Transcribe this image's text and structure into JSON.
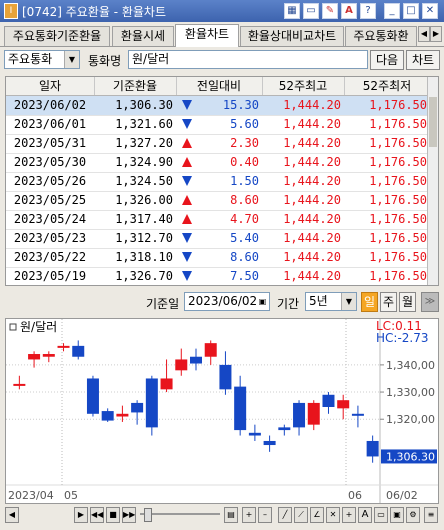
{
  "window": {
    "title": "[0742] 주요환율 - 환율차트",
    "app_icon": "I"
  },
  "tabs": [
    {
      "label": "주요통화기준환율",
      "active": false
    },
    {
      "label": "환율시세",
      "active": false
    },
    {
      "label": "환율차트",
      "active": true
    },
    {
      "label": "환율상대비교차트",
      "active": false
    },
    {
      "label": "주요통화환",
      "active": false
    }
  ],
  "controls": {
    "category_value": "주요통화",
    "currency_label": "통화명",
    "currency_value": "원/달러",
    "next_label": "다음",
    "chart_label": "차트"
  },
  "grid": {
    "headers": [
      "일자",
      "기준환율",
      "전일대비",
      "52주최고",
      "52주최저"
    ],
    "rows": [
      {
        "date": "2023/06/02",
        "rate": "1,306.30",
        "dir": "dn",
        "change": "15.30",
        "high": "1,444.20",
        "low": "1,176.50"
      },
      {
        "date": "2023/06/01",
        "rate": "1,321.60",
        "dir": "dn",
        "change": "5.60",
        "high": "1,444.20",
        "low": "1,176.50"
      },
      {
        "date": "2023/05/31",
        "rate": "1,327.20",
        "dir": "up",
        "change": "2.30",
        "high": "1,444.20",
        "low": "1,176.50"
      },
      {
        "date": "2023/05/30",
        "rate": "1,324.90",
        "dir": "up",
        "change": "0.40",
        "high": "1,444.20",
        "low": "1,176.50"
      },
      {
        "date": "2023/05/26",
        "rate": "1,324.50",
        "dir": "dn",
        "change": "1.50",
        "high": "1,444.20",
        "low": "1,176.50"
      },
      {
        "date": "2023/05/25",
        "rate": "1,326.00",
        "dir": "up",
        "change": "8.60",
        "high": "1,444.20",
        "low": "1,176.50"
      },
      {
        "date": "2023/05/24",
        "rate": "1,317.40",
        "dir": "up",
        "change": "4.70",
        "high": "1,444.20",
        "low": "1,176.50"
      },
      {
        "date": "2023/05/23",
        "rate": "1,312.70",
        "dir": "dn",
        "change": "5.40",
        "high": "1,444.20",
        "low": "1,176.50"
      },
      {
        "date": "2023/05/22",
        "rate": "1,318.10",
        "dir": "dn",
        "change": "8.60",
        "high": "1,444.20",
        "low": "1,176.50"
      },
      {
        "date": "2023/05/19",
        "rate": "1,326.70",
        "dir": "dn",
        "change": "7.50",
        "high": "1,444.20",
        "low": "1,176.50"
      }
    ]
  },
  "datebar": {
    "base_date_label": "기준일",
    "base_date_value": "2023/06/02",
    "period_label": "기간",
    "period_value": "5년",
    "day_label": "일",
    "week_label": "주",
    "month_label": "월"
  },
  "chart": {
    "legend": "원/달러",
    "lc": "LC:0.11",
    "hc": "HC:-2.73",
    "price_top_partial": "1,340,00",
    "current_price": "1,306.30"
  },
  "chart_data": {
    "type": "candlestick",
    "title": "원/달러",
    "y_ticks": [
      "1,340,00",
      "1,330,00",
      "1,320,00"
    ],
    "y_tick_values": [
      1340,
      1330,
      1320
    ],
    "ylim": [
      1298,
      1351
    ],
    "x_labels": [
      "2023/04",
      "05",
      "06",
      "06/02"
    ],
    "candles": [
      {
        "o": 1333.0,
        "h": 1336.0,
        "l": 1331.0,
        "c": 1333.0
      },
      {
        "o": 1342.0,
        "h": 1345.0,
        "l": 1339.0,
        "c": 1344.0
      },
      {
        "o": 1343.0,
        "h": 1345.0,
        "l": 1341.0,
        "c": 1344.0
      },
      {
        "o": 1347.0,
        "h": 1348.0,
        "l": 1345.0,
        "c": 1347.0
      },
      {
        "o": 1347.0,
        "h": 1349.0,
        "l": 1342.0,
        "c": 1343.0
      },
      {
        "o": 1335.0,
        "h": 1336.0,
        "l": 1321.0,
        "c": 1322.0
      },
      {
        "o": 1323.0,
        "h": 1324.0,
        "l": 1319.0,
        "c": 1319.5
      },
      {
        "o": 1321.0,
        "h": 1325.0,
        "l": 1319.0,
        "c": 1322.0
      },
      {
        "o": 1326.0,
        "h": 1327.0,
        "l": 1318.0,
        "c": 1322.5
      },
      {
        "o": 1335.0,
        "h": 1336.0,
        "l": 1314.0,
        "c": 1317.0
      },
      {
        "o": 1331.0,
        "h": 1342.0,
        "l": 1330.0,
        "c": 1335.0
      },
      {
        "o": 1338.0,
        "h": 1346.0,
        "l": 1336.0,
        "c": 1342.0
      },
      {
        "o": 1343.0,
        "h": 1346.0,
        "l": 1338.0,
        "c": 1340.5
      },
      {
        "o": 1343.0,
        "h": 1349.0,
        "l": 1340.0,
        "c": 1348.0
      },
      {
        "o": 1340.0,
        "h": 1345.0,
        "l": 1329.0,
        "c": 1331.0
      },
      {
        "o": 1332.0,
        "h": 1336.0,
        "l": 1314.0,
        "c": 1316.0
      },
      {
        "o": 1315.0,
        "h": 1318.0,
        "l": 1312.0,
        "c": 1314.0
      },
      {
        "o": 1312.0,
        "h": 1314.0,
        "l": 1308.0,
        "c": 1310.5
      },
      {
        "o": 1317.0,
        "h": 1318.0,
        "l": 1314.0,
        "c": 1316.0
      },
      {
        "o": 1326.0,
        "h": 1327.0,
        "l": 1314.0,
        "c": 1317.0
      },
      {
        "o": 1318.0,
        "h": 1327.0,
        "l": 1316.0,
        "c": 1326.0
      },
      {
        "o": 1329.0,
        "h": 1330.0,
        "l": 1322.0,
        "c": 1324.5
      },
      {
        "o": 1324.0,
        "h": 1329.0,
        "l": 1320.0,
        "c": 1327.0
      },
      {
        "o": 1322.0,
        "h": 1325.0,
        "l": 1317.0,
        "c": 1321.6
      },
      {
        "o": 1312.0,
        "h": 1314.0,
        "l": 1304.0,
        "c": 1306.3
      }
    ],
    "up_color": "#e8141c",
    "down_color": "#1547c5"
  },
  "bottombar": {
    "zoom_label": "A"
  }
}
